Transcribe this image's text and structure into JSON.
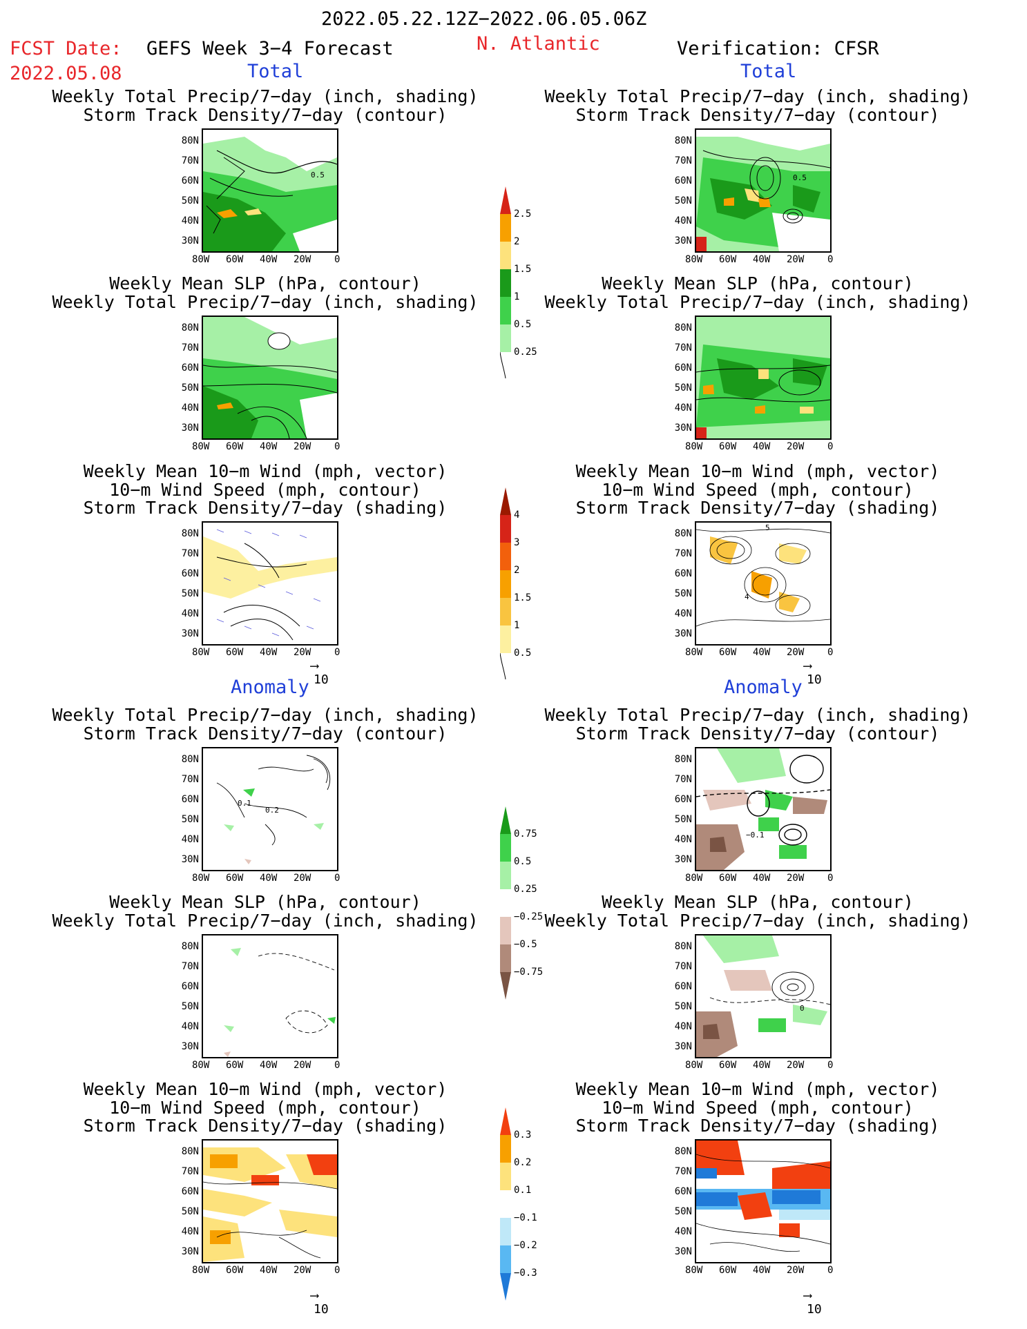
{
  "header": {
    "date_range": "2022.05.22.12Z−2022.06.05.06Z",
    "fcst_label": "FCST Date:",
    "fcst_date": "2022.05.08",
    "forecast_title": "GEFS Week 3−4 Forecast",
    "region": "N. Atlantic",
    "verification": "Verification: CFSR"
  },
  "sections": {
    "total": "Total",
    "anomaly": "Anomaly"
  },
  "titles": {
    "precip_track": [
      "Weekly Total Precip/7−day (inch, shading)",
      "Storm Track Density/7−day (contour)"
    ],
    "slp_precip": [
      "Weekly Mean SLP (hPa, contour)",
      "Weekly Total Precip/7−day (inch, shading)"
    ],
    "wind": [
      "Weekly Mean 10−m Wind (mph, vector)",
      "10−m Wind Speed (mph, contour)",
      "Storm Track Density/7−day (shading)"
    ]
  },
  "axes": {
    "lat": [
      "80N",
      "70N",
      "60N",
      "50N",
      "40N",
      "30N"
    ],
    "lon": [
      "80W",
      "60W",
      "40W",
      "20W",
      "0"
    ]
  },
  "contour_labels": {
    "p1_left": "0.5",
    "p1_right": "0.5",
    "p3_right_a": "5",
    "p3_right_b": "4",
    "p4_left_a": "0.1",
    "p4_left_b": "0.2",
    "p4_right": "−0.1",
    "p5_right": "0"
  },
  "vector_ref": "10",
  "colorbars": {
    "precip_total": {
      "labels": [
        "2.5",
        "2",
        "1.5",
        "1",
        "0.5",
        "0.25"
      ],
      "colors": [
        "#d62418",
        "#f7a000",
        "#fde27c",
        "#1a9a1a",
        "#3fd14b",
        "#a6f0a6"
      ]
    },
    "track_total": {
      "labels": [
        "4",
        "3",
        "2",
        "1.5",
        "1",
        "0.5"
      ],
      "colors": [
        "#9a1a00",
        "#d62418",
        "#f2600c",
        "#f7a000",
        "#f9c440",
        "#fdf0a0"
      ]
    },
    "precip_anom": {
      "labels": [
        "0.75",
        "0.5",
        "0.25",
        "−0.25",
        "−0.5",
        "−0.75"
      ],
      "colors": [
        "#1a9a1a",
        "#3fd14b",
        "#a6f0a6",
        "#ffffff",
        "#e4c6bc",
        "#b08a7a",
        "#7a5444"
      ]
    },
    "track_anom": {
      "labels": [
        "0.3",
        "0.2",
        "0.1",
        "−0.1",
        "−0.2",
        "−0.3"
      ],
      "colors": [
        "#f24010",
        "#f7a000",
        "#fde27c",
        "#ffffff",
        "#bfe8f8",
        "#59b8f2",
        "#1f7ad8"
      ]
    }
  },
  "palette": {
    "header_red": "#e8262a",
    "section_blue": "#1f3fd8",
    "precip_light": "#a6f0a6",
    "precip_mid": "#3fd14b",
    "precip_dark": "#1a9a1a",
    "dry_brown": "#b08a7a",
    "track_orange": "#f7a000"
  }
}
